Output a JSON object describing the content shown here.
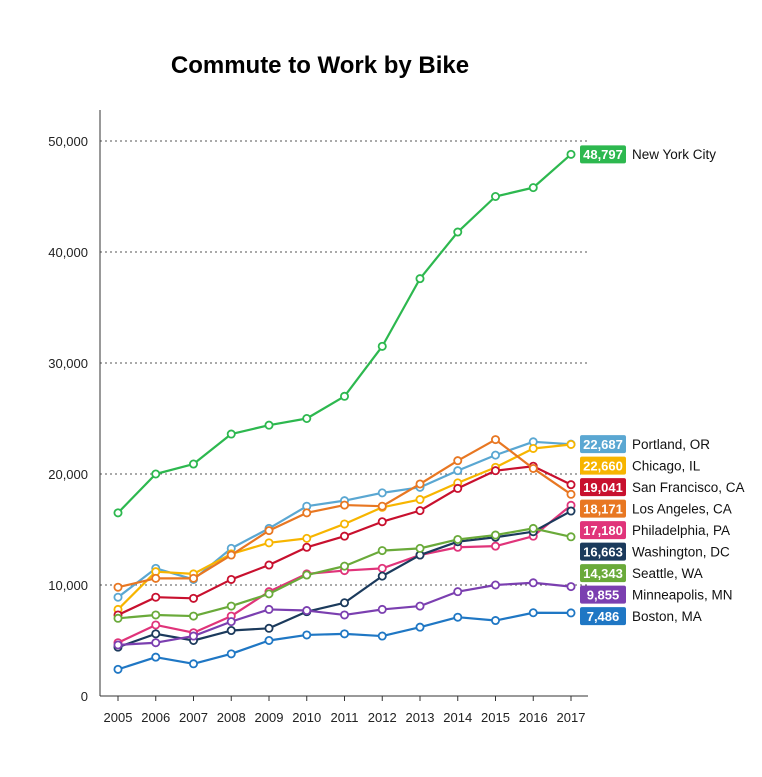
{
  "chart_data": {
    "type": "line",
    "title": "Commute to Work by Bike",
    "xlabel": "",
    "ylabel": "",
    "x": [
      2005,
      2006,
      2007,
      2008,
      2009,
      2010,
      2011,
      2012,
      2013,
      2014,
      2015,
      2016,
      2017
    ],
    "ylim": [
      0,
      50000
    ],
    "yticks": [
      0,
      10000,
      20000,
      30000,
      40000,
      50000
    ],
    "ytick_labels": [
      "0",
      "10,000",
      "20,000",
      "30,000",
      "40,000",
      "50,000"
    ],
    "grid": "horizontal dotted",
    "legend": "right, labels at line ends",
    "series": [
      {
        "name": "New York City",
        "end_label": "48,797",
        "color": "#2db84f",
        "values": [
          16500,
          20000,
          20900,
          23600,
          24400,
          25000,
          27000,
          31500,
          37600,
          41800,
          45000,
          45800,
          48797
        ]
      },
      {
        "name": "Portland, OR",
        "end_label": "22,687",
        "color": "#5aa7d2",
        "values": [
          8900,
          11500,
          10500,
          13300,
          15100,
          17100,
          17600,
          18300,
          18800,
          20300,
          21700,
          22900,
          22687
        ]
      },
      {
        "name": "Chicago, IL",
        "end_label": "22,660",
        "color": "#f7b500",
        "values": [
          7800,
          11200,
          11000,
          12800,
          13800,
          14200,
          15500,
          17000,
          17700,
          19200,
          20600,
          22300,
          22660
        ]
      },
      {
        "name": "San Francisco, CA",
        "end_label": "19,041",
        "color": "#c8102e",
        "values": [
          7300,
          8900,
          8800,
          10500,
          11800,
          13400,
          14400,
          15700,
          16700,
          18700,
          20300,
          20700,
          19041
        ]
      },
      {
        "name": "Los Angeles, CA",
        "end_label": "18,171",
        "color": "#e87722",
        "values": [
          9800,
          10600,
          10600,
          12700,
          14900,
          16500,
          17200,
          17100,
          19100,
          21200,
          23100,
          20500,
          18171
        ]
      },
      {
        "name": "Philadelphia, PA",
        "end_label": "17,180",
        "color": "#e0347a",
        "values": [
          4800,
          6400,
          5700,
          7200,
          9400,
          11000,
          11300,
          11500,
          12700,
          13400,
          13500,
          14400,
          17180
        ]
      },
      {
        "name": "Washington, DC",
        "end_label": "16,663",
        "color": "#1b3a5c",
        "values": [
          4400,
          5600,
          5000,
          5900,
          6100,
          7600,
          8400,
          10800,
          12700,
          13900,
          14300,
          14800,
          16663
        ]
      },
      {
        "name": "Seattle, WA",
        "end_label": "14,343",
        "color": "#6aaa3a",
        "values": [
          7000,
          7300,
          7200,
          8100,
          9200,
          10900,
          11700,
          13100,
          13300,
          14100,
          14500,
          15100,
          14343
        ]
      },
      {
        "name": "Minneapolis, MN",
        "end_label": "9,855",
        "color": "#7b3fb0",
        "values": [
          4600,
          4800,
          5400,
          6700,
          7800,
          7700,
          7300,
          7800,
          8100,
          9400,
          10000,
          10200,
          9855
        ]
      },
      {
        "name": "Boston, MA",
        "end_label": "7,486",
        "color": "#1f77c4",
        "values": [
          2400,
          3500,
          2900,
          3800,
          5000,
          5500,
          5600,
          5400,
          6200,
          7100,
          6800,
          7500,
          7486
        ]
      }
    ]
  }
}
